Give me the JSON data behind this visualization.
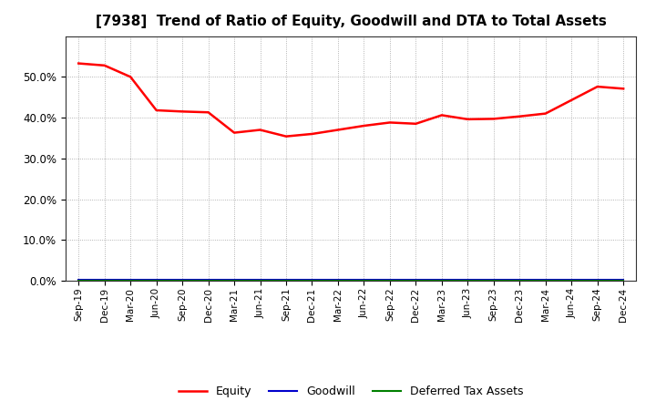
{
  "title": "[7938]  Trend of Ratio of Equity, Goodwill and DTA to Total Assets",
  "x_labels": [
    "Sep-19",
    "Dec-19",
    "Mar-20",
    "Jun-20",
    "Sep-20",
    "Dec-20",
    "Mar-21",
    "Jun-21",
    "Sep-21",
    "Dec-21",
    "Mar-22",
    "Jun-22",
    "Sep-22",
    "Dec-22",
    "Mar-23",
    "Jun-23",
    "Sep-23",
    "Dec-23",
    "Mar-24",
    "Jun-24",
    "Sep-24",
    "Dec-24"
  ],
  "equity": [
    0.533,
    0.528,
    0.5,
    0.418,
    0.415,
    0.413,
    0.363,
    0.37,
    0.354,
    0.36,
    0.37,
    0.38,
    0.388,
    0.385,
    0.406,
    0.396,
    0.397,
    0.403,
    0.41,
    0.443,
    0.476,
    0.471
  ],
  "goodwill": [
    0.002,
    0.002,
    0.002,
    0.002,
    0.002,
    0.002,
    0.002,
    0.002,
    0.002,
    0.002,
    0.002,
    0.002,
    0.002,
    0.002,
    0.002,
    0.002,
    0.002,
    0.002,
    0.002,
    0.002,
    0.002,
    0.002
  ],
  "dta": [
    0.001,
    0.001,
    0.001,
    0.001,
    0.001,
    0.001,
    0.001,
    0.001,
    0.001,
    0.001,
    0.001,
    0.001,
    0.001,
    0.001,
    0.001,
    0.001,
    0.001,
    0.001,
    0.001,
    0.001,
    0.001,
    0.001
  ],
  "equity_color": "#FF0000",
  "goodwill_color": "#0000CC",
  "dta_color": "#008000",
  "ylim": [
    0.0,
    0.6
  ],
  "yticks": [
    0.0,
    0.1,
    0.2,
    0.3,
    0.4,
    0.5
  ],
  "background_color": "#FFFFFF",
  "plot_bg_color": "#FFFFFF",
  "grid_color": "#888888",
  "title_fontsize": 11,
  "legend_labels": [
    "Equity",
    "Goodwill",
    "Deferred Tax Assets"
  ]
}
